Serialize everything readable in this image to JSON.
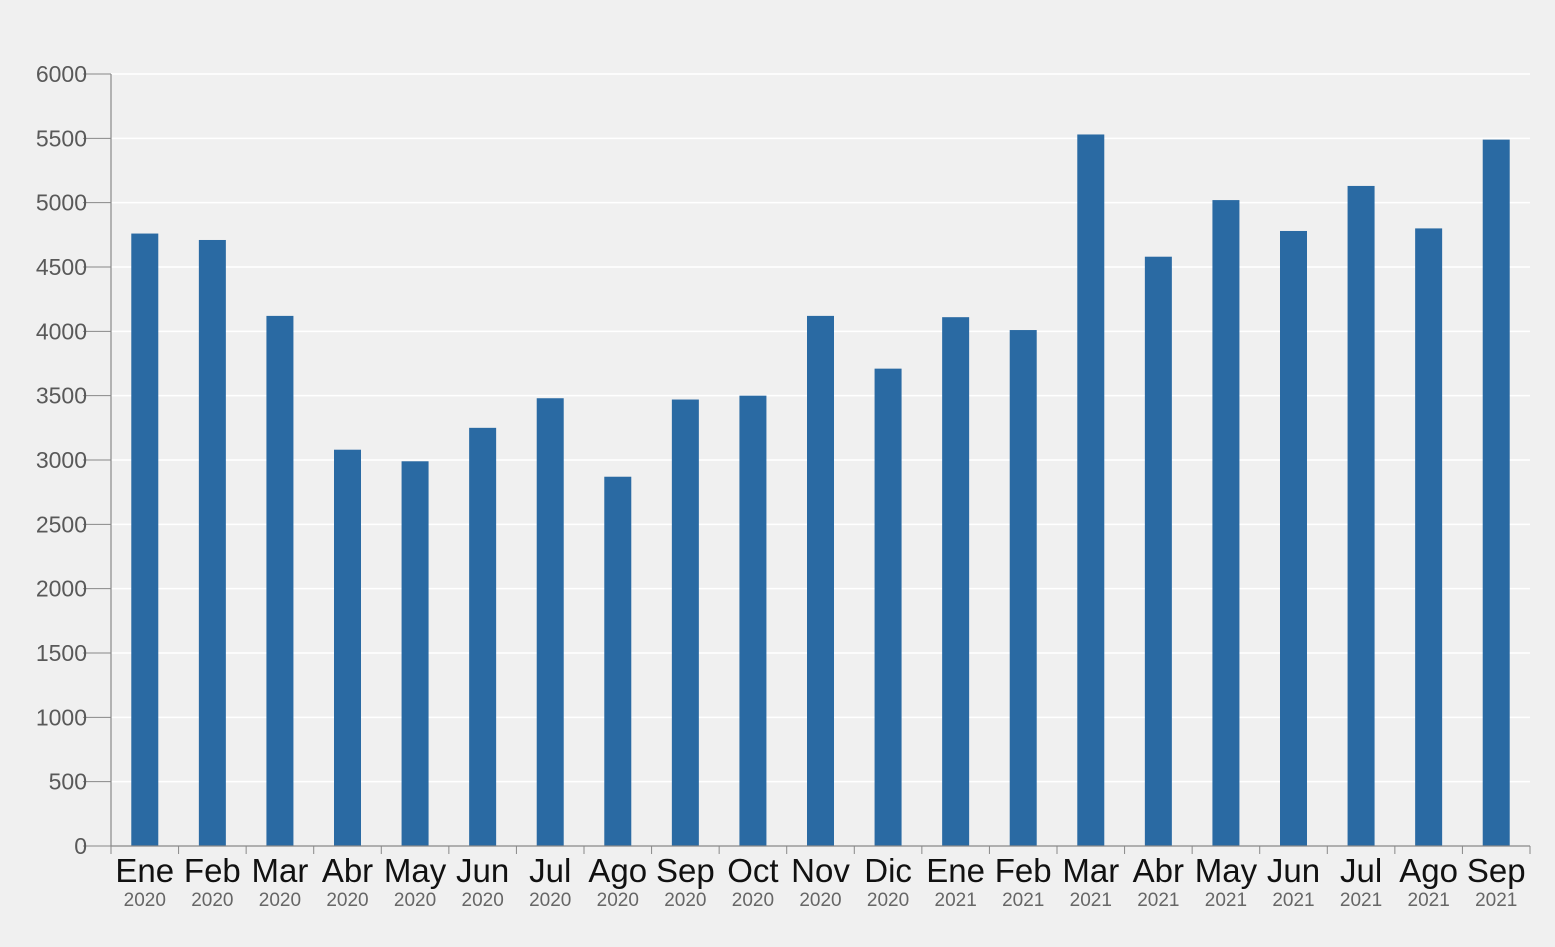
{
  "colors": {
    "background": "#f0f0f0",
    "bar": "#2a6aa3",
    "gridline": "#ffffff",
    "axis": "#888888"
  },
  "chart_data": {
    "type": "bar",
    "title": "",
    "xlabel": "",
    "ylabel": "",
    "ylim": [
      0,
      6000
    ],
    "yticks": [
      0,
      500,
      1000,
      1500,
      2000,
      2500,
      3000,
      3500,
      4000,
      4500,
      5000,
      5500,
      6000
    ],
    "grid": true,
    "legend": "none",
    "categories": [
      {
        "month": "Ene",
        "year": "2020"
      },
      {
        "month": "Feb",
        "year": "2020"
      },
      {
        "month": "Mar",
        "year": "2020"
      },
      {
        "month": "Abr",
        "year": "2020"
      },
      {
        "month": "May",
        "year": "2020"
      },
      {
        "month": "Jun",
        "year": "2020"
      },
      {
        "month": "Jul",
        "year": "2020"
      },
      {
        "month": "Ago",
        "year": "2020"
      },
      {
        "month": "Sep",
        "year": "2020"
      },
      {
        "month": "Oct",
        "year": "2020"
      },
      {
        "month": "Nov",
        "year": "2020"
      },
      {
        "month": "Dic",
        "year": "2020"
      },
      {
        "month": "Ene",
        "year": "2021"
      },
      {
        "month": "Feb",
        "year": "2021"
      },
      {
        "month": "Mar",
        "year": "2021"
      },
      {
        "month": "Abr",
        "year": "2021"
      },
      {
        "month": "May",
        "year": "2021"
      },
      {
        "month": "Jun",
        "year": "2021"
      },
      {
        "month": "Jul",
        "year": "2021"
      },
      {
        "month": "Ago",
        "year": "2021"
      },
      {
        "month": "Sep",
        "year": "2021"
      }
    ],
    "values": [
      4760,
      4710,
      4120,
      3080,
      2990,
      3250,
      3480,
      2870,
      3470,
      3500,
      4120,
      3710,
      4110,
      4010,
      5530,
      4580,
      5020,
      4780,
      5130,
      4800,
      5490
    ]
  }
}
